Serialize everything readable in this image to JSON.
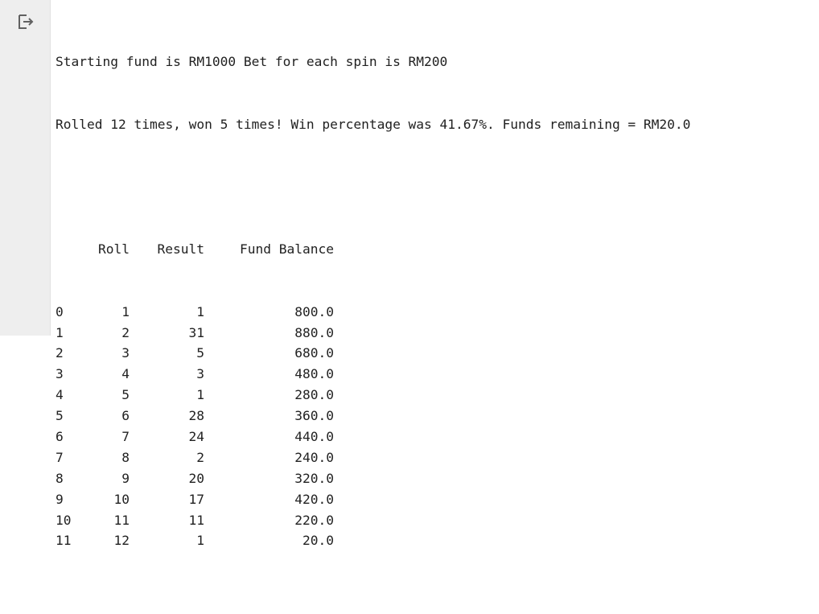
{
  "output": {
    "icon": "output-arrow-icon",
    "lines": [
      "Starting fund is RM1000 Bet for each spin is RM200",
      "Rolled 12 times, won 5 times! Win percentage was 41.67%. Funds remaining = RM20.0"
    ],
    "table": {
      "columns": [
        "",
        "Roll",
        "Result",
        "Fund Balance"
      ],
      "rows": [
        {
          "index": "0",
          "roll": "1",
          "result": "1",
          "fund": "800.0"
        },
        {
          "index": "1",
          "roll": "2",
          "result": "31",
          "fund": "880.0"
        },
        {
          "index": "2",
          "roll": "3",
          "result": "5",
          "fund": "680.0"
        },
        {
          "index": "3",
          "roll": "4",
          "result": "3",
          "fund": "480.0"
        },
        {
          "index": "4",
          "roll": "5",
          "result": "1",
          "fund": "280.0"
        },
        {
          "index": "5",
          "roll": "6",
          "result": "28",
          "fund": "360.0"
        },
        {
          "index": "6",
          "roll": "7",
          "result": "24",
          "fund": "440.0"
        },
        {
          "index": "7",
          "roll": "8",
          "result": "2",
          "fund": "240.0"
        },
        {
          "index": "8",
          "roll": "9",
          "result": "20",
          "fund": "320.0"
        },
        {
          "index": "9",
          "roll": "10",
          "result": "17",
          "fund": "420.0"
        },
        {
          "index": "10",
          "roll": "11",
          "result": "11",
          "fund": "220.0"
        },
        {
          "index": "11",
          "roll": "12",
          "result": "1",
          "fund": "20.0"
        }
      ]
    }
  }
}
